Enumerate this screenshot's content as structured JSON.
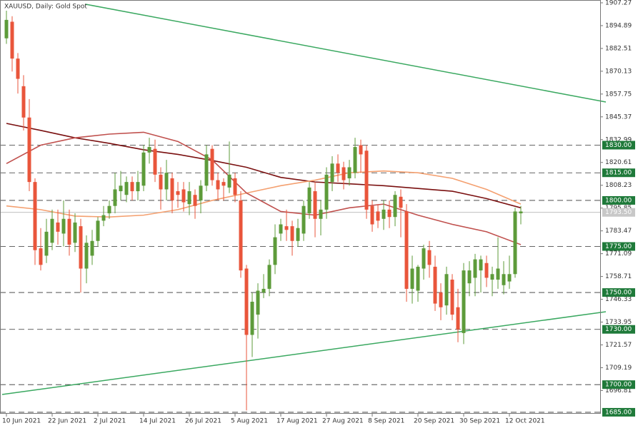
{
  "chart_data": {
    "type": "candlestick",
    "title": "XAUUSD, Daily:  Gold Spot",
    "up_color": "#5d9b3a",
    "down_color": "#e9553b",
    "categories": [
      "10 Jun 2021",
      null,
      null,
      null,
      null,
      null,
      null,
      null,
      "22 Jun 2021",
      null,
      null,
      null,
      null,
      null,
      null,
      null,
      "2 Jul 2021",
      null,
      null,
      null,
      null,
      null,
      null,
      null,
      "14 Jul 2021",
      null,
      null,
      null,
      null,
      null,
      null,
      null,
      "26 Jul 2021",
      null,
      null,
      null,
      null,
      null,
      null,
      null,
      "5 Aug 2021",
      null,
      null,
      null,
      null,
      null,
      null,
      null,
      "17 Aug 2021",
      null,
      null,
      null,
      null,
      null,
      null,
      null,
      "27 Aug 2021",
      null,
      null,
      null,
      null,
      null,
      null,
      null,
      "8 Sep 2021",
      null,
      null,
      null,
      null,
      null,
      null,
      null,
      "20 Sep 2021",
      null,
      null,
      null,
      null,
      null,
      null,
      null,
      "30 Sep 2021",
      null,
      null,
      null,
      null,
      null,
      null,
      null,
      "12 Oct 2021",
      null,
      null
    ],
    "ohlc": [
      [
        1888,
        1903,
        1885,
        1898
      ],
      [
        1897,
        1900,
        1870,
        1877
      ],
      [
        1877,
        1880,
        1858,
        1866
      ],
      [
        1862,
        1868,
        1838,
        1845
      ],
      [
        1845,
        1855,
        1805,
        1810
      ],
      [
        1810,
        1812,
        1765,
        1773
      ],
      [
        1774,
        1785,
        1762,
        1765
      ],
      [
        1770,
        1790,
        1766,
        1783
      ],
      [
        1777,
        1795,
        1773,
        1790
      ],
      [
        1788,
        1795,
        1776,
        1783
      ],
      [
        1782,
        1800,
        1775,
        1790
      ],
      [
        1790,
        1795,
        1770,
        1776
      ],
      [
        1777,
        1793,
        1772,
        1788
      ],
      [
        1786,
        1790,
        1750,
        1763
      ],
      [
        1763,
        1781,
        1755,
        1777
      ],
      [
        1770,
        1784,
        1765,
        1778
      ],
      [
        1778,
        1791,
        1775,
        1789
      ],
      [
        1789,
        1797,
        1786,
        1792
      ],
      [
        1793,
        1800,
        1790,
        1797
      ],
      [
        1797,
        1815,
        1793,
        1806
      ],
      [
        1805,
        1816,
        1800,
        1808
      ],
      [
        1803,
        1813,
        1799,
        1810
      ],
      [
        1810,
        1813,
        1800,
        1805
      ],
      [
        1805,
        1816,
        1800,
        1810
      ],
      [
        1808,
        1830,
        1805,
        1826
      ],
      [
        1826,
        1834,
        1820,
        1829
      ],
      [
        1828,
        1833,
        1810,
        1814
      ],
      [
        1814,
        1818,
        1795,
        1806
      ],
      [
        1806,
        1822,
        1800,
        1815
      ],
      [
        1812,
        1815,
        1793,
        1800
      ],
      [
        1805,
        1810,
        1796,
        1803
      ],
      [
        1806,
        1810,
        1794,
        1799
      ],
      [
        1798,
        1810,
        1792,
        1805
      ],
      [
        1803,
        1806,
        1790,
        1797
      ],
      [
        1800,
        1811,
        1793,
        1808
      ],
      [
        1808,
        1830,
        1805,
        1825
      ],
      [
        1828,
        1830,
        1808,
        1811
      ],
      [
        1811,
        1815,
        1800,
        1806
      ],
      [
        1810,
        1812,
        1800,
        1808
      ],
      [
        1807,
        1832,
        1804,
        1814
      ],
      [
        1812,
        1815,
        1799,
        1803
      ],
      [
        1800,
        1805,
        1758,
        1762
      ],
      [
        1763,
        1765,
        1686,
        1727
      ],
      [
        1727,
        1750,
        1715,
        1745
      ],
      [
        1738,
        1755,
        1725,
        1751
      ],
      [
        1750,
        1760,
        1747,
        1752
      ],
      [
        1752,
        1768,
        1748,
        1765
      ],
      [
        1765,
        1787,
        1760,
        1780
      ],
      [
        1782,
        1790,
        1778,
        1787
      ],
      [
        1786,
        1795,
        1778,
        1784
      ],
      [
        1786,
        1789,
        1770,
        1778
      ],
      [
        1778,
        1790,
        1775,
        1785
      ],
      [
        1782,
        1800,
        1778,
        1797
      ],
      [
        1793,
        1810,
        1790,
        1807
      ],
      [
        1805,
        1810,
        1780,
        1790
      ],
      [
        1790,
        1800,
        1781,
        1795
      ],
      [
        1795,
        1818,
        1790,
        1814
      ],
      [
        1810,
        1824,
        1805,
        1820
      ],
      [
        1820,
        1825,
        1810,
        1815
      ],
      [
        1818,
        1821,
        1806,
        1811
      ],
      [
        1812,
        1822,
        1808,
        1818
      ],
      [
        1815,
        1834,
        1812,
        1829
      ],
      [
        1830,
        1833,
        1815,
        1825
      ],
      [
        1827,
        1830,
        1790,
        1795
      ],
      [
        1797,
        1800,
        1783,
        1787
      ],
      [
        1794,
        1798,
        1785,
        1789
      ],
      [
        1790,
        1800,
        1784,
        1795
      ],
      [
        1795,
        1800,
        1785,
        1791
      ],
      [
        1791,
        1805,
        1786,
        1803
      ],
      [
        1802,
        1806,
        1780,
        1796
      ],
      [
        1794,
        1798,
        1745,
        1752
      ],
      [
        1752,
        1770,
        1744,
        1763
      ],
      [
        1751,
        1765,
        1745,
        1764
      ],
      [
        1763,
        1776,
        1757,
        1774
      ],
      [
        1773,
        1778,
        1758,
        1765
      ],
      [
        1764,
        1770,
        1740,
        1744
      ],
      [
        1750,
        1755,
        1735,
        1742
      ],
      [
        1743,
        1764,
        1738,
        1760
      ],
      [
        1757,
        1760,
        1735,
        1738
      ],
      [
        1742,
        1752,
        1723,
        1730
      ],
      [
        1728,
        1766,
        1722,
        1762
      ],
      [
        1755,
        1767,
        1748,
        1762
      ],
      [
        1758,
        1771,
        1748,
        1768
      ],
      [
        1762,
        1770,
        1750,
        1768
      ],
      [
        1766,
        1770,
        1753,
        1758
      ],
      [
        1757,
        1764,
        1748,
        1760
      ],
      [
        1757,
        1780,
        1752,
        1763
      ],
      [
        1754,
        1767,
        1749,
        1760
      ],
      [
        1756,
        1770,
        1752,
        1760
      ],
      [
        1760,
        1796,
        1758,
        1794
      ],
      [
        1793,
        1797,
        1787,
        1794
      ]
    ],
    "moving_averages": [
      {
        "color": "#7a1010",
        "x": [
          0,
          6,
          12,
          18,
          24,
          30,
          36,
          42,
          48,
          54,
          60,
          66,
          72,
          78,
          84,
          90
        ],
        "values": [
          1841.8,
          1838,
          1834,
          1831,
          1827.5,
          1825,
          1821.7,
          1818,
          1812.5,
          1810,
          1809,
          1808,
          1806.5,
          1805,
          1801,
          1796
        ]
      },
      {
        "color": "#f4a070",
        "x": [
          0,
          6,
          12,
          18,
          24,
          30,
          36,
          42,
          48,
          54,
          60,
          66,
          72,
          78,
          84,
          90
        ],
        "values": [
          1797,
          1795,
          1791.5,
          1791,
          1792,
          1795,
          1800,
          1804,
          1808,
          1811,
          1815,
          1816,
          1815,
          1812,
          1806,
          1798
        ]
      },
      {
        "color": "#c0504d",
        "x": [
          0,
          6,
          12,
          18,
          24,
          30,
          36,
          42,
          48,
          54,
          60,
          66,
          72,
          78,
          84,
          90
        ],
        "values": [
          1820,
          1830,
          1834,
          1836,
          1837,
          1832,
          1822,
          1804,
          1794,
          1792,
          1796,
          1798,
          1792,
          1787,
          1783,
          1776
        ]
      }
    ],
    "levels": [
      {
        "value": 1830,
        "label": "1830.00"
      },
      {
        "value": 1815,
        "label": "1815.00"
      },
      {
        "value": 1800,
        "label": "1800.00"
      },
      {
        "value": 1775,
        "label": "1775.00"
      },
      {
        "value": 1750,
        "label": "1750.00"
      },
      {
        "value": 1730,
        "label": "1730.00"
      },
      {
        "value": 1700,
        "label": "1700.00"
      },
      {
        "value": 1685,
        "label": "1685.00"
      }
    ],
    "price": {
      "value": 1793.5,
      "label": "1793.50"
    },
    "ylim": [
      1684.2,
      1908.8
    ],
    "yticks": [
      1907.27,
      1894.89,
      1882.51,
      1870.13,
      1857.75,
      1845.37,
      1832.99,
      1820.61,
      1808.23,
      1795.85,
      1783.47,
      1771.09,
      1758.71,
      1746.33,
      1733.95,
      1721.57,
      1709.19,
      1696.81
    ]
  }
}
